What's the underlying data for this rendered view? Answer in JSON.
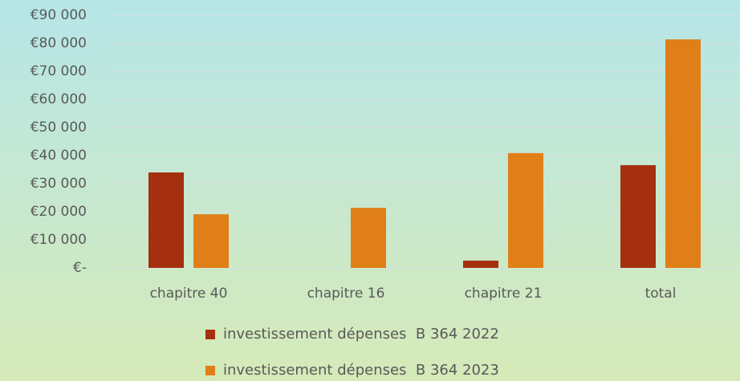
{
  "chart_data": {
    "type": "bar",
    "categories": [
      "chapitre 40",
      "chapitre 16",
      "chapitre 21",
      "total"
    ],
    "series": [
      {
        "name": "investissement dépenses  B 364 2022",
        "color": "#a5300f",
        "values": [
          34000,
          0,
          2600,
          36600
        ]
      },
      {
        "name": "investissement dépenses  B 364 2023",
        "color": "#e07f18",
        "values": [
          19100,
          21400,
          40900,
          81400
        ]
      }
    ],
    "ylim": [
      0,
      90000
    ],
    "yticks": [
      {
        "value": 0,
        "label": "€-"
      },
      {
        "value": 10000,
        "label": "€10 000"
      },
      {
        "value": 20000,
        "label": "€20 000"
      },
      {
        "value": 30000,
        "label": "€30 000"
      },
      {
        "value": 40000,
        "label": "€40 000"
      },
      {
        "value": 50000,
        "label": "€50 000"
      },
      {
        "value": 60000,
        "label": "€60 000"
      },
      {
        "value": 70000,
        "label": "€70 000"
      },
      {
        "value": 80000,
        "label": "€80 000"
      },
      {
        "value": 90000,
        "label": "€90 000"
      }
    ],
    "grid": true,
    "legend": "bottom"
  }
}
